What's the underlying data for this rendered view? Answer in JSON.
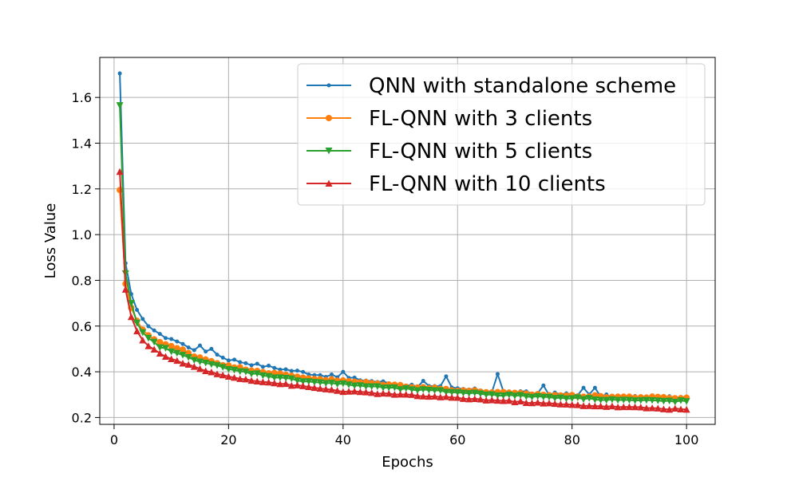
{
  "chart_data": {
    "type": "line",
    "title": "",
    "xlabel": "Epochs",
    "ylabel": "Loss Value",
    "xlim": [
      -2.5,
      105
    ],
    "ylim": [
      0.17,
      1.775
    ],
    "xticks": [
      0,
      20,
      40,
      60,
      80,
      100
    ],
    "yticks": [
      0.2,
      0.4,
      0.6,
      0.8,
      1.0,
      1.2,
      1.4,
      1.6
    ],
    "grid": true,
    "legend_position": "top-right",
    "series": [
      {
        "name": "QNN with standalone scheme",
        "color": "#1f77b4",
        "marker": "dot",
        "anchors": [
          [
            1,
            1.705
          ],
          [
            2,
            0.875
          ],
          [
            3,
            0.74
          ],
          [
            4,
            0.665
          ],
          [
            5,
            0.625
          ],
          [
            6,
            0.605
          ],
          [
            8,
            0.56
          ],
          [
            10,
            0.545
          ],
          [
            12,
            0.52
          ],
          [
            14,
            0.5
          ],
          [
            16,
            0.49
          ],
          [
            18,
            0.475
          ],
          [
            20,
            0.455
          ],
          [
            25,
            0.43
          ],
          [
            30,
            0.41
          ],
          [
            35,
            0.39
          ],
          [
            40,
            0.375
          ],
          [
            50,
            0.345
          ],
          [
            60,
            0.325
          ],
          [
            70,
            0.31
          ],
          [
            80,
            0.3
          ],
          [
            90,
            0.29
          ],
          [
            100,
            0.285
          ]
        ],
        "noise": 0.007,
        "spikes": [
          [
            15,
            0.515
          ],
          [
            17,
            0.5
          ],
          [
            40,
            0.4
          ],
          [
            54,
            0.36
          ],
          [
            58,
            0.38
          ],
          [
            67,
            0.39
          ],
          [
            75,
            0.34
          ],
          [
            82,
            0.33
          ],
          [
            84,
            0.33
          ]
        ]
      },
      {
        "name": "FL-QNN with 3 clients",
        "color": "#ff7f0e",
        "marker": "circle",
        "anchors": [
          [
            1,
            1.195
          ],
          [
            2,
            0.785
          ],
          [
            3,
            0.68
          ],
          [
            4,
            0.62
          ],
          [
            5,
            0.585
          ],
          [
            6,
            0.56
          ],
          [
            8,
            0.53
          ],
          [
            10,
            0.51
          ],
          [
            12,
            0.495
          ],
          [
            14,
            0.47
          ],
          [
            16,
            0.455
          ],
          [
            18,
            0.44
          ],
          [
            20,
            0.425
          ],
          [
            25,
            0.405
          ],
          [
            30,
            0.385
          ],
          [
            35,
            0.37
          ],
          [
            40,
            0.36
          ],
          [
            50,
            0.34
          ],
          [
            60,
            0.32
          ],
          [
            70,
            0.305
          ],
          [
            80,
            0.295
          ],
          [
            90,
            0.29
          ],
          [
            100,
            0.285
          ]
        ],
        "noise": 0.004,
        "spikes": []
      },
      {
        "name": "FL-QNN with 5 clients",
        "color": "#2ca02c",
        "marker": "triangle-down",
        "anchors": [
          [
            1,
            1.565
          ],
          [
            2,
            0.83
          ],
          [
            3,
            0.7
          ],
          [
            4,
            0.61
          ],
          [
            5,
            0.57
          ],
          [
            6,
            0.545
          ],
          [
            8,
            0.51
          ],
          [
            10,
            0.49
          ],
          [
            12,
            0.47
          ],
          [
            14,
            0.455
          ],
          [
            16,
            0.44
          ],
          [
            18,
            0.425
          ],
          [
            20,
            0.41
          ],
          [
            25,
            0.39
          ],
          [
            30,
            0.37
          ],
          [
            35,
            0.355
          ],
          [
            40,
            0.345
          ],
          [
            50,
            0.325
          ],
          [
            60,
            0.31
          ],
          [
            70,
            0.295
          ],
          [
            80,
            0.285
          ],
          [
            90,
            0.275
          ],
          [
            100,
            0.27
          ]
        ],
        "noise": 0.004,
        "spikes": []
      },
      {
        "name": "FL-QNN with 10 clients",
        "color": "#d62728",
        "marker": "triangle-up",
        "anchors": [
          [
            1,
            1.275
          ],
          [
            2,
            0.76
          ],
          [
            3,
            0.64
          ],
          [
            4,
            0.575
          ],
          [
            5,
            0.54
          ],
          [
            6,
            0.515
          ],
          [
            8,
            0.48
          ],
          [
            10,
            0.455
          ],
          [
            12,
            0.44
          ],
          [
            14,
            0.42
          ],
          [
            16,
            0.405
          ],
          [
            18,
            0.39
          ],
          [
            20,
            0.38
          ],
          [
            25,
            0.36
          ],
          [
            30,
            0.345
          ],
          [
            35,
            0.33
          ],
          [
            40,
            0.315
          ],
          [
            50,
            0.3
          ],
          [
            60,
            0.285
          ],
          [
            70,
            0.27
          ],
          [
            80,
            0.255
          ],
          [
            90,
            0.245
          ],
          [
            100,
            0.235
          ]
        ],
        "noise": 0.003,
        "spikes": []
      }
    ]
  }
}
